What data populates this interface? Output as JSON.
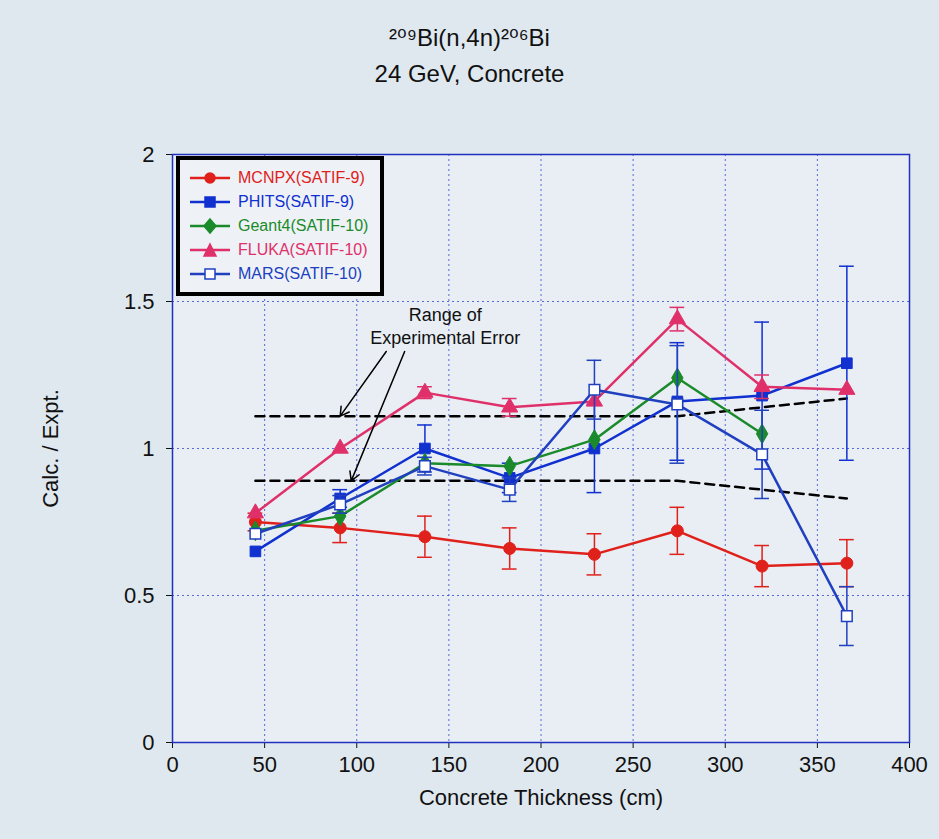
{
  "chart_data": {
    "type": "line",
    "title": "²⁰⁹Bi(n,4n)²⁰⁶Bi",
    "subtitle": "24 GeV, Concrete",
    "x_label": "Concrete Thickness (cm)",
    "y_label": "Calc. / Expt.",
    "xlim": [
      0,
      400
    ],
    "ylim": [
      0,
      2
    ],
    "xticks": [
      0,
      50,
      100,
      150,
      200,
      250,
      300,
      350,
      400
    ],
    "yticks": [
      0,
      0.5,
      1,
      1.5,
      2
    ],
    "grid": true,
    "legend": "top-left",
    "x": [
      45,
      91,
      137,
      183,
      229,
      274,
      320,
      366
    ],
    "series": [
      {
        "name": "MCNPX(SATIF-9)",
        "color": "#e0201b",
        "marker": "circle",
        "values": [
          0.75,
          0.73,
          0.7,
          0.66,
          0.64,
          0.72,
          0.6,
          0.61
        ],
        "errors": [
          0.03,
          0.05,
          0.07,
          0.07,
          0.07,
          0.08,
          0.07,
          0.08
        ]
      },
      {
        "name": "PHITS(SATIF-9)",
        "color": "#1030d0",
        "marker": "square",
        "values": [
          0.65,
          0.83,
          1.0,
          0.9,
          1.0,
          1.16,
          1.18,
          1.29
        ],
        "errors": [
          null,
          0.03,
          0.08,
          0.05,
          0.15,
          0.2,
          0.25,
          0.33
        ]
      },
      {
        "name": "Geant4(SATIF-10)",
        "color": "#1a8a2a",
        "marker": "diamond",
        "values": [
          0.72,
          0.77,
          0.95,
          0.94,
          1.03,
          1.24,
          1.05,
          null
        ]
      },
      {
        "name": "FLUKA(SATIF-10)",
        "color": "#e0306a",
        "marker": "triangle",
        "values": [
          0.78,
          1.0,
          1.19,
          1.14,
          1.16,
          1.44,
          1.21,
          1.2
        ],
        "errors": [
          null,
          null,
          0.02,
          0.03,
          null,
          0.04,
          0.04,
          null
        ]
      },
      {
        "name": "MARS(SATIF-10)",
        "color": "#2040c0",
        "marker": "open square",
        "values": [
          0.71,
          0.81,
          0.94,
          0.86,
          1.2,
          1.15,
          0.98,
          0.43
        ],
        "errors": [
          null,
          0.03,
          0.03,
          0.04,
          0.1,
          0.2,
          0.15,
          0.1
        ]
      }
    ],
    "experimental_error_range": {
      "color": "#000000",
      "line_style": "dashed",
      "upper": [
        1.11,
        1.11,
        1.11,
        1.11,
        1.11,
        1.11,
        1.14,
        1.17
      ],
      "lower": [
        0.89,
        0.89,
        0.89,
        0.89,
        0.89,
        0.89,
        0.86,
        0.83
      ]
    },
    "annotations": [
      {
        "text": "Range of\nExperimental Error",
        "x": 148,
        "y": 1.42
      }
    ]
  }
}
